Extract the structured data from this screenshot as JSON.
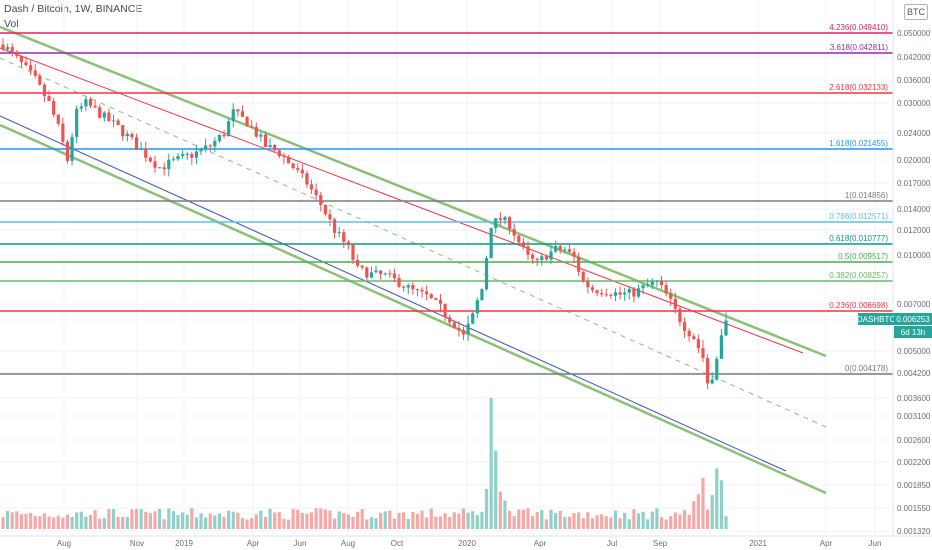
{
  "header": {
    "title": "Dash / Bitcoin, 1W, BINANCE",
    "volume_label": "Vol",
    "currency": "BTC"
  },
  "chart_data": {
    "type": "candlestick",
    "symbol": "DASHBTC",
    "last_price_label": "0.006253",
    "countdown_label": "6d 13h",
    "price_ticks": [
      "0.050000",
      "0.042000",
      "0.036000",
      "0.030000",
      "0.024000",
      "0.020000",
      "0.017000",
      "0.014000",
      "0.012000",
      "0.010000",
      "0.007000",
      "0.006000",
      "0.005000",
      "0.004200",
      "0.003600",
      "0.003100",
      "0.002600",
      "0.002200",
      "0.001850",
      "0.001550",
      "0.001320"
    ],
    "date_ticks": [
      "Aug",
      "Nov",
      "2019",
      "Apr",
      "Jun",
      "Aug",
      "Oct",
      "2020",
      "Apr",
      "Jul",
      "Sep",
      "2021",
      "Apr",
      "Jun"
    ],
    "fib_levels": [
      {
        "label": "4.236(0.049410)",
        "color": "#e91e63"
      },
      {
        "label": "3.618(0.042811)",
        "color": "#9c27b0"
      },
      {
        "label": "2.618(0.032133)",
        "color": "#f23645"
      },
      {
        "label": "1.618(0.021455)",
        "color": "#2196f3"
      },
      {
        "label": "1(0.014856)",
        "color": "#787b86"
      },
      {
        "label": "0.786(0.012571)",
        "color": "#5cc2e8"
      },
      {
        "label": "0.618(0.010777)",
        "color": "#089981"
      },
      {
        "label": "0.5(0.009517)",
        "color": "#4caf50"
      },
      {
        "label": "0.382(0.008257)",
        "color": "#66bb6a"
      },
      {
        "label": "0.236(0.006698)",
        "color": "#f23645"
      },
      {
        "label": "0(0.004178)",
        "color": "#787b86"
      }
    ],
    "colors": {
      "up": "#26a69a",
      "down": "#ef5350",
      "vol_up": "#8fd1c9",
      "vol_down": "#f5a9a7",
      "channel": "#8bc177",
      "resistance": "#f23645",
      "support": "#3f51b5"
    }
  }
}
